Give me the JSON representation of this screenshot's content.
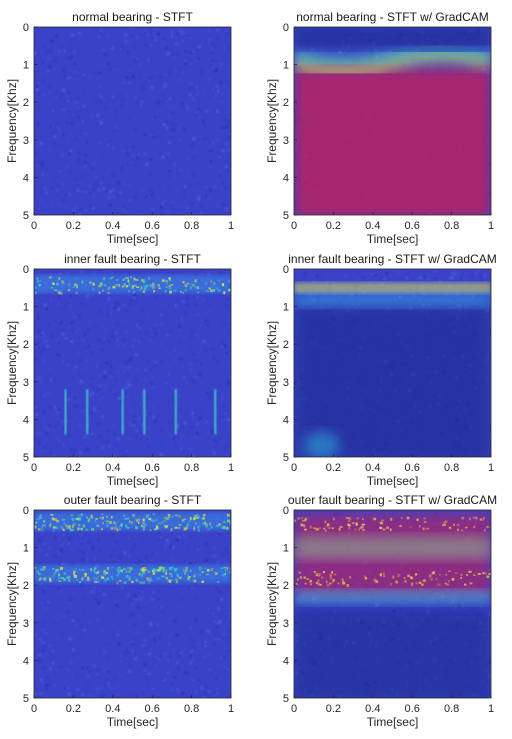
{
  "chart_data": [
    {
      "type": "heatmap",
      "panel": "a",
      "title": "normal bearing - STFT",
      "xlabel": "Time[sec]",
      "ylabel": "Frequency[Khz]",
      "xlim": [
        0,
        1
      ],
      "ylim": [
        0,
        5
      ],
      "y_reversed": true,
      "x_ticks": [
        "0",
        "0.2",
        "0.4",
        "0.6",
        "0.8",
        "1"
      ],
      "y_ticks": [
        "0",
        "1",
        "2",
        "3",
        "4",
        "5"
      ],
      "colormap": "jet",
      "overlay": "none",
      "energy_bands_khz": [],
      "vertical_streaks_sec": []
    },
    {
      "type": "heatmap",
      "panel": "b",
      "title": "normal bearing - STFT w/ GradCAM",
      "xlabel": "Time[sec]",
      "ylabel": "Frequency[Khz]",
      "xlim": [
        0,
        1
      ],
      "ylim": [
        0,
        5
      ],
      "y_reversed": true,
      "x_ticks": [
        "0",
        "0.2",
        "0.4",
        "0.6",
        "0.8",
        "1"
      ],
      "y_ticks": [
        "0",
        "1",
        "2",
        "3",
        "4",
        "5"
      ],
      "colormap": "jet",
      "overlay": "gradcam",
      "gradcam_high_region_khz": [
        1.2,
        5
      ],
      "gradcam_low_region_khz": [
        0,
        0.7
      ]
    },
    {
      "type": "heatmap",
      "panel": "c",
      "title": "inner fault bearing - STFT",
      "xlabel": "Time[sec]",
      "ylabel": "Frequency[Khz]",
      "xlim": [
        0,
        1
      ],
      "ylim": [
        0,
        5
      ],
      "y_reversed": true,
      "x_ticks": [
        "0",
        "0.2",
        "0.4",
        "0.6",
        "0.8",
        "1"
      ],
      "y_ticks": [
        "0",
        "1",
        "2",
        "3",
        "4",
        "5"
      ],
      "colormap": "jet",
      "overlay": "none",
      "energy_bands_khz": [
        0.4
      ],
      "vertical_streaks_sec": [
        0.16,
        0.27,
        0.45,
        0.56,
        0.72,
        0.92
      ]
    },
    {
      "type": "heatmap",
      "panel": "d",
      "title": "inner fault bearing - STFT w/ GradCAM",
      "xlabel": "Time[sec]",
      "ylabel": "Frequency[Khz]",
      "xlim": [
        0,
        1
      ],
      "ylim": [
        0,
        5
      ],
      "y_reversed": true,
      "x_ticks": [
        "0",
        "0.2",
        "0.4",
        "0.6",
        "0.8",
        "1"
      ],
      "y_ticks": [
        "0",
        "1",
        "2",
        "3",
        "4",
        "5"
      ],
      "colormap": "jet",
      "overlay": "gradcam",
      "gradcam_high_region_khz": [
        0.2,
        0.9
      ],
      "gradcam_low_region_khz": [
        1,
        5
      ]
    },
    {
      "type": "heatmap",
      "panel": "e",
      "title": "outer fault bearing - STFT",
      "xlabel": "Time[sec]",
      "ylabel": "Frequency[Khz]",
      "xlim": [
        0,
        1
      ],
      "ylim": [
        0,
        5
      ],
      "y_reversed": true,
      "x_ticks": [
        "0",
        "0.2",
        "0.4",
        "0.6",
        "0.8",
        "1"
      ],
      "y_ticks": [
        "0",
        "1",
        "2",
        "3",
        "4",
        "5"
      ],
      "colormap": "jet",
      "overlay": "none",
      "energy_bands_khz": [
        0.3,
        1.7
      ],
      "vertical_streaks_sec": []
    },
    {
      "type": "heatmap",
      "panel": "f",
      "title": "outer fault bearing - STFT w/ GradCAM",
      "xlabel": "Time[sec]",
      "ylabel": "Frequency[Khz]",
      "xlim": [
        0,
        1
      ],
      "ylim": [
        0,
        5
      ],
      "y_reversed": true,
      "x_ticks": [
        "0",
        "0.2",
        "0.4",
        "0.6",
        "0.8",
        "1"
      ],
      "y_ticks": [
        "0",
        "1",
        "2",
        "3",
        "4",
        "5"
      ],
      "colormap": "jet",
      "overlay": "gradcam",
      "gradcam_high_region_khz": [
        0,
        2.3
      ],
      "gradcam_low_region_khz": [
        2.6,
        5
      ]
    }
  ],
  "colors": {
    "background_blue": "#3a42c8",
    "deep_blue": "#1f2a8a",
    "hot_magenta": "#b8245e",
    "band_yellow": "#e6e04a",
    "band_cyan": "#3fd6c8"
  }
}
